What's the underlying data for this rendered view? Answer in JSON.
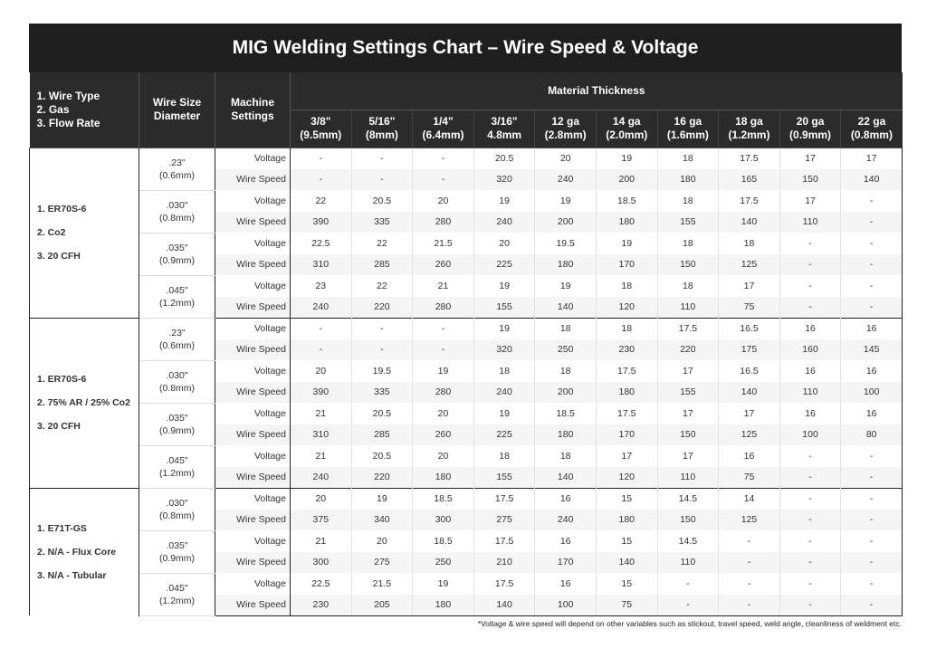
{
  "title": "MIG Welding Settings Chart – Wire Speed & Voltage",
  "header": {
    "col1": [
      "1. Wire Type",
      "2. Gas",
      "3. Flow Rate"
    ],
    "col2": [
      "Wire Size",
      "Diameter"
    ],
    "col3": [
      "Machine",
      "Settings"
    ],
    "material_thickness": "Material Thickness",
    "thicknesses": [
      [
        "3/8\"",
        "(9.5mm)"
      ],
      [
        "5/16\"",
        "(8mm)"
      ],
      [
        "1/4\"",
        "(6.4mm)"
      ],
      [
        "3/16\"",
        "4.8mm"
      ],
      [
        "12 ga",
        "(2.8mm)"
      ],
      [
        "14 ga",
        "(2.0mm)"
      ],
      [
        "16 ga",
        "(1.6mm)"
      ],
      [
        "18 ga",
        "(1.2mm)"
      ],
      [
        "20 ga",
        "(0.9mm)"
      ],
      [
        "22 ga",
        "(0.8mm)"
      ]
    ]
  },
  "groups": [
    {
      "labels": [
        "1. ER70S-6",
        "2. Co2",
        "3. 20 CFH"
      ],
      "sizes": [
        {
          "size": [
            ".23\"",
            "(0.6mm)"
          ],
          "voltage": [
            "-",
            "-",
            "-",
            "20.5",
            "20",
            "19",
            "18",
            "17.5",
            "17",
            "17"
          ],
          "wire_speed": [
            "-",
            "-",
            "-",
            "320",
            "240",
            "200",
            "180",
            "165",
            "150",
            "140"
          ]
        },
        {
          "size": [
            ".030\"",
            "(0.8mm)"
          ],
          "voltage": [
            "22",
            "20.5",
            "20",
            "19",
            "19",
            "18.5",
            "18",
            "17.5",
            "17",
            "-"
          ],
          "wire_speed": [
            "390",
            "335",
            "280",
            "240",
            "200",
            "180",
            "155",
            "140",
            "110",
            "-"
          ]
        },
        {
          "size": [
            ".035\"",
            "(0.9mm)"
          ],
          "voltage": [
            "22.5",
            "22",
            "21.5",
            "20",
            "19.5",
            "19",
            "18",
            "18",
            "-",
            "-"
          ],
          "wire_speed": [
            "310",
            "285",
            "260",
            "225",
            "180",
            "170",
            "150",
            "125",
            "-",
            "-"
          ]
        },
        {
          "size": [
            ".045\"",
            "(1.2mm)"
          ],
          "voltage": [
            "23",
            "22",
            "21",
            "19",
            "19",
            "18",
            "18",
            "17",
            "-",
            "-"
          ],
          "wire_speed": [
            "240",
            "220",
            "280",
            "155",
            "140",
            "120",
            "110",
            "75",
            "-",
            "-"
          ]
        }
      ]
    },
    {
      "labels": [
        "1. ER70S-6",
        "2. 75% AR / 25% Co2",
        "3. 20 CFH"
      ],
      "sizes": [
        {
          "size": [
            ".23\"",
            "(0.6mm)"
          ],
          "voltage": [
            "-",
            "-",
            "-",
            "19",
            "18",
            "18",
            "17.5",
            "16.5",
            "16",
            "16"
          ],
          "wire_speed": [
            "-",
            "-",
            "-",
            "320",
            "250",
            "230",
            "220",
            "175",
            "160",
            "145"
          ]
        },
        {
          "size": [
            ".030\"",
            "(0.8mm)"
          ],
          "voltage": [
            "20",
            "19.5",
            "19",
            "18",
            "18",
            "17.5",
            "17",
            "16.5",
            "16",
            "16"
          ],
          "wire_speed": [
            "390",
            "335",
            "280",
            "240",
            "200",
            "180",
            "155",
            "140",
            "110",
            "100"
          ]
        },
        {
          "size": [
            ".035\"",
            "(0.9mm)"
          ],
          "voltage": [
            "21",
            "20.5",
            "20",
            "19",
            "18.5",
            "17.5",
            "17",
            "17",
            "16",
            "16"
          ],
          "wire_speed": [
            "310",
            "285",
            "260",
            "225",
            "180",
            "170",
            "150",
            "125",
            "100",
            "80"
          ]
        },
        {
          "size": [
            ".045\"",
            "(1.2mm)"
          ],
          "voltage": [
            "21",
            "20.5",
            "20",
            "18",
            "18",
            "17",
            "17",
            "16",
            "-",
            "-"
          ],
          "wire_speed": [
            "240",
            "220",
            "180",
            "155",
            "140",
            "120",
            "110",
            "75",
            "-",
            "-"
          ]
        }
      ]
    },
    {
      "labels": [
        "1. E71T-GS",
        "2. N/A - Flux Core",
        "3. N/A - Tubular"
      ],
      "sizes": [
        {
          "size": [
            ".030\"",
            "(0.8mm)"
          ],
          "voltage": [
            "20",
            "19",
            "18.5",
            "17.5",
            "16",
            "15",
            "14.5",
            "14",
            "-",
            "-"
          ],
          "wire_speed": [
            "375",
            "340",
            "300",
            "275",
            "240",
            "180",
            "150",
            "125",
            "-",
            "-"
          ]
        },
        {
          "size": [
            ".035\"",
            "(0.9mm)"
          ],
          "voltage": [
            "21",
            "20",
            "18.5",
            "17.5",
            "16",
            "15",
            "14.5",
            "-",
            "-",
            "-"
          ],
          "wire_speed": [
            "300",
            "275",
            "250",
            "210",
            "170",
            "140",
            "110",
            "-",
            "-",
            "-"
          ]
        },
        {
          "size": [
            ".045\"",
            "(1.2mm)"
          ],
          "voltage": [
            "22.5",
            "21.5",
            "19",
            "17.5",
            "16",
            "15",
            "-",
            "-",
            "-",
            "-"
          ],
          "wire_speed": [
            "230",
            "205",
            "180",
            "140",
            "100",
            "75",
            "-",
            "-",
            "-",
            "-"
          ]
        }
      ]
    }
  ],
  "setting_labels": {
    "voltage": "Voltage",
    "wire_speed": "Wire Speed"
  },
  "footnote": "*Voltage & wire speed will depend on other variables such as stickout, travel speed, weld angle, cleanliness of weldment etc."
}
